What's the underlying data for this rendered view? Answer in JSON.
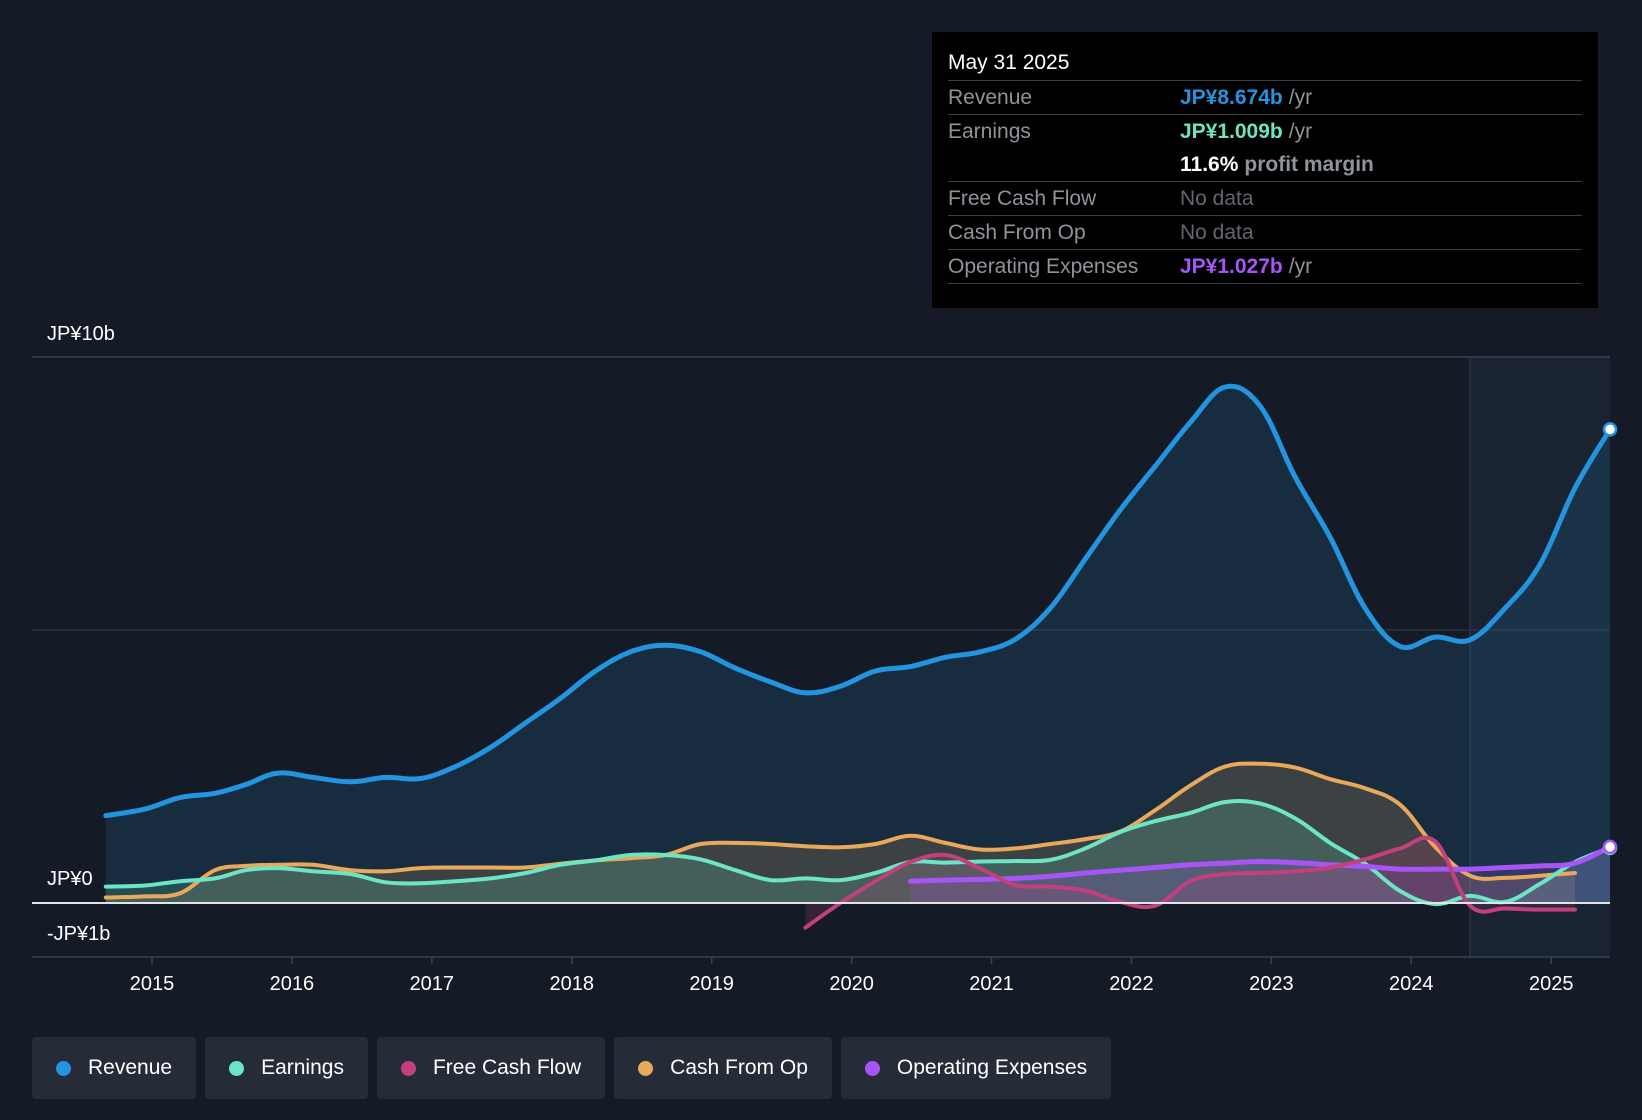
{
  "tooltip": {
    "date": "May 31 2025",
    "rows": {
      "revenue": {
        "label": "Revenue",
        "value": "JP¥8.674b",
        "unit": "/yr",
        "color": "#2394df"
      },
      "earnings": {
        "label": "Earnings",
        "value": "JP¥1.009b",
        "unit": "/yr",
        "color": "#6ce5c4"
      },
      "margin": {
        "value": "11.6%",
        "label": "profit margin"
      },
      "fcf": {
        "label": "Free Cash Flow",
        "value": "No data"
      },
      "cfo": {
        "label": "Cash From Op",
        "value": "No data"
      },
      "opex": {
        "label": "Operating Expenses",
        "value": "JP¥1.027b",
        "unit": "/yr",
        "color": "#a855f7"
      }
    }
  },
  "legend": [
    {
      "key": "revenue",
      "label": "Revenue",
      "color": "#2394df"
    },
    {
      "key": "earnings",
      "label": "Earnings",
      "color": "#6ce5c4"
    },
    {
      "key": "fcf",
      "label": "Free Cash Flow",
      "color": "#c2407e"
    },
    {
      "key": "cfo",
      "label": "Cash From Op",
      "color": "#e8a95a"
    },
    {
      "key": "opex",
      "label": "Operating Expenses",
      "color": "#a855f7"
    }
  ],
  "chart_data": {
    "type": "line",
    "title": "",
    "xlabel": "",
    "ylabel": "",
    "ylim": [
      -1,
      10
    ],
    "xlim": [
      2014.6,
      2025.42
    ],
    "y_tick_labels": {
      "top": "JP¥10b",
      "zero": "JP¥0",
      "bottom": "-JP¥1b"
    },
    "x_ticks": [
      2015,
      2016,
      2017,
      2018,
      2019,
      2020,
      2021,
      2022,
      2023,
      2024,
      2025
    ],
    "x_tick_labels": [
      "2015",
      "2016",
      "2017",
      "2018",
      "2019",
      "2020",
      "2021",
      "2022",
      "2023",
      "2024",
      "2025"
    ],
    "forecast_start": 2024.42,
    "series": [
      {
        "name": "Revenue",
        "color": "#2394df",
        "width": 5,
        "fill": true,
        "x": [
          2014.67,
          2014.95,
          2015.2,
          2015.45,
          2015.67,
          2015.9,
          2016.15,
          2016.42,
          2016.67,
          2016.92,
          2017.17,
          2017.42,
          2017.67,
          2017.92,
          2018.17,
          2018.42,
          2018.67,
          2018.92,
          2019.17,
          2019.42,
          2019.67,
          2019.92,
          2020.17,
          2020.42,
          2020.67,
          2020.92,
          2021.17,
          2021.42,
          2021.67,
          2021.92,
          2022.17,
          2022.42,
          2022.67,
          2022.92,
          2023.17,
          2023.42,
          2023.67,
          2023.92,
          2024.17,
          2024.42,
          2024.67,
          2024.92,
          2025.17,
          2025.42
        ],
        "y": [
          1.6,
          1.72,
          1.93,
          2.01,
          2.17,
          2.38,
          2.3,
          2.22,
          2.3,
          2.28,
          2.5,
          2.85,
          3.3,
          3.75,
          4.25,
          4.6,
          4.72,
          4.6,
          4.3,
          4.05,
          3.85,
          3.97,
          4.25,
          4.33,
          4.5,
          4.6,
          4.83,
          5.4,
          6.3,
          7.2,
          8.0,
          8.8,
          9.45,
          9.1,
          7.8,
          6.7,
          5.4,
          4.7,
          4.87,
          4.82,
          5.4,
          6.2,
          7.6,
          8.674
        ]
      },
      {
        "name": "Cash From Op",
        "color": "#e8a95a",
        "width": 4,
        "fill": true,
        "x": [
          2014.67,
          2014.95,
          2015.2,
          2015.45,
          2015.67,
          2015.9,
          2016.15,
          2016.42,
          2016.67,
          2016.92,
          2017.17,
          2017.42,
          2017.67,
          2017.92,
          2018.17,
          2018.42,
          2018.67,
          2018.92,
          2019.17,
          2019.42,
          2019.67,
          2019.92,
          2020.17,
          2020.42,
          2020.67,
          2020.92,
          2021.17,
          2021.42,
          2021.67,
          2021.92,
          2022.17,
          2022.42,
          2022.67,
          2022.92,
          2023.17,
          2023.42,
          2023.67,
          2023.92,
          2024.17,
          2024.42,
          2024.67,
          2024.92,
          2025.17
        ],
        "y": [
          0.1,
          0.12,
          0.18,
          0.6,
          0.68,
          0.7,
          0.7,
          0.6,
          0.58,
          0.64,
          0.65,
          0.65,
          0.65,
          0.72,
          0.78,
          0.82,
          0.88,
          1.08,
          1.1,
          1.08,
          1.04,
          1.02,
          1.08,
          1.23,
          1.1,
          0.98,
          1.0,
          1.08,
          1.17,
          1.31,
          1.7,
          2.15,
          2.5,
          2.55,
          2.48,
          2.27,
          2.1,
          1.8,
          1.03,
          0.5,
          0.46,
          0.5,
          0.55
        ]
      },
      {
        "name": "Earnings",
        "color": "#6ce5c4",
        "width": 4,
        "fill": true,
        "x": [
          2014.67,
          2014.95,
          2015.2,
          2015.45,
          2015.67,
          2015.9,
          2016.15,
          2016.42,
          2016.67,
          2016.92,
          2017.17,
          2017.42,
          2017.67,
          2017.92,
          2018.17,
          2018.42,
          2018.67,
          2018.92,
          2019.17,
          2019.42,
          2019.67,
          2019.92,
          2020.17,
          2020.42,
          2020.67,
          2020.92,
          2021.17,
          2021.42,
          2021.67,
          2021.92,
          2022.17,
          2022.42,
          2022.67,
          2022.92,
          2023.17,
          2023.42,
          2023.67,
          2023.92,
          2024.17,
          2024.42,
          2024.67,
          2024.92,
          2025.17,
          2025.42
        ],
        "y": [
          0.3,
          0.32,
          0.4,
          0.45,
          0.6,
          0.64,
          0.58,
          0.53,
          0.38,
          0.36,
          0.4,
          0.45,
          0.55,
          0.7,
          0.78,
          0.88,
          0.88,
          0.8,
          0.6,
          0.42,
          0.45,
          0.42,
          0.55,
          0.75,
          0.74,
          0.76,
          0.77,
          0.79,
          1.0,
          1.3,
          1.5,
          1.65,
          1.85,
          1.82,
          1.55,
          1.1,
          0.72,
          0.22,
          -0.02,
          0.13,
          0.02,
          0.35,
          0.75,
          1.009
        ]
      },
      {
        "name": "Operating Expenses",
        "color": "#a855f7",
        "width": 5,
        "fill": true,
        "x": [
          2020.42,
          2020.67,
          2020.92,
          2021.17,
          2021.42,
          2021.67,
          2021.92,
          2022.17,
          2022.42,
          2022.67,
          2022.92,
          2023.17,
          2023.42,
          2023.67,
          2023.92,
          2024.17,
          2024.42,
          2024.67,
          2024.92,
          2025.17,
          2025.42
        ],
        "y": [
          0.4,
          0.42,
          0.43,
          0.45,
          0.49,
          0.55,
          0.6,
          0.65,
          0.7,
          0.73,
          0.76,
          0.74,
          0.7,
          0.67,
          0.62,
          0.62,
          0.62,
          0.65,
          0.68,
          0.73,
          1.027
        ]
      },
      {
        "name": "Free Cash Flow",
        "color": "#c2407e",
        "width": 4,
        "fill": true,
        "x": [
          2019.67,
          2019.92,
          2020.17,
          2020.42,
          2020.67,
          2020.92,
          2021.17,
          2021.42,
          2021.67,
          2021.92,
          2022.17,
          2022.42,
          2022.67,
          2022.92,
          2023.17,
          2023.42,
          2023.67,
          2023.92,
          2024.17,
          2024.42,
          2024.67,
          2024.92,
          2025.17
        ],
        "y": [
          -0.45,
          0.0,
          0.4,
          0.75,
          0.88,
          0.63,
          0.33,
          0.3,
          0.23,
          0.02,
          -0.05,
          0.4,
          0.53,
          0.55,
          0.58,
          0.65,
          0.8,
          1.0,
          1.13,
          -0.05,
          -0.1,
          -0.12,
          -0.12
        ]
      }
    ]
  }
}
